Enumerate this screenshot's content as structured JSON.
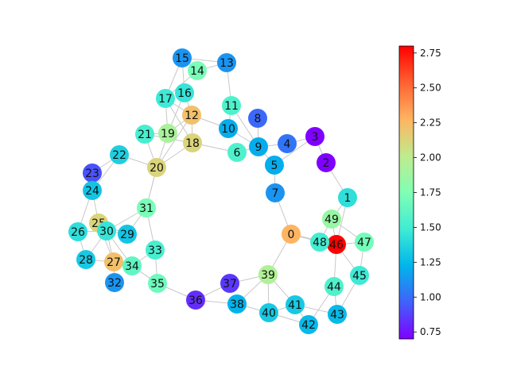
{
  "graph": {
    "edge_color": "#c8c8c8",
    "colormap": "rainbow",
    "nodes": [
      {
        "id": "0",
        "value": 2.27
      },
      {
        "id": "1",
        "value": 1.42
      },
      {
        "id": "2",
        "value": 0.7
      },
      {
        "id": "3",
        "value": 0.7
      },
      {
        "id": "4",
        "value": 1.02
      },
      {
        "id": "5",
        "value": 1.2
      },
      {
        "id": "6",
        "value": 1.55
      },
      {
        "id": "7",
        "value": 1.12
      },
      {
        "id": "8",
        "value": 0.98
      },
      {
        "id": "9",
        "value": 1.2
      },
      {
        "id": "10",
        "value": 1.2
      },
      {
        "id": "11",
        "value": 1.55
      },
      {
        "id": "12",
        "value": 2.22
      },
      {
        "id": "13",
        "value": 1.12
      },
      {
        "id": "14",
        "value": 1.72
      },
      {
        "id": "15",
        "value": 1.12
      },
      {
        "id": "16",
        "value": 1.45
      },
      {
        "id": "17",
        "value": 1.48
      },
      {
        "id": "18",
        "value": 2.12
      },
      {
        "id": "19",
        "value": 1.92
      },
      {
        "id": "20",
        "value": 2.12
      },
      {
        "id": "21",
        "value": 1.52
      },
      {
        "id": "22",
        "value": 1.35
      },
      {
        "id": "23",
        "value": 0.92
      },
      {
        "id": "24",
        "value": 1.3
      },
      {
        "id": "25",
        "value": 2.12
      },
      {
        "id": "26",
        "value": 1.42
      },
      {
        "id": "27",
        "value": 2.22
      },
      {
        "id": "28",
        "value": 1.32
      },
      {
        "id": "29",
        "value": 1.3
      },
      {
        "id": "30",
        "value": 1.45
      },
      {
        "id": "31",
        "value": 1.72
      },
      {
        "id": "32",
        "value": 1.12
      },
      {
        "id": "33",
        "value": 1.52
      },
      {
        "id": "34",
        "value": 1.62
      },
      {
        "id": "35",
        "value": 1.68
      },
      {
        "id": "36",
        "value": 0.82
      },
      {
        "id": "37",
        "value": 0.85
      },
      {
        "id": "38",
        "value": 1.22
      },
      {
        "id": "39",
        "value": 1.95
      },
      {
        "id": "40",
        "value": 1.32
      },
      {
        "id": "41",
        "value": 1.32
      },
      {
        "id": "42",
        "value": 1.25
      },
      {
        "id": "43",
        "value": 1.25
      },
      {
        "id": "44",
        "value": 1.55
      },
      {
        "id": "45",
        "value": 1.48
      },
      {
        "id": "46",
        "value": 2.8
      },
      {
        "id": "47",
        "value": 1.7
      },
      {
        "id": "48",
        "value": 1.5
      },
      {
        "id": "49",
        "value": 1.85
      }
    ],
    "edges": [
      [
        "0",
        "7"
      ],
      [
        "0",
        "48"
      ],
      [
        "0",
        "46"
      ],
      [
        "0",
        "39"
      ],
      [
        "1",
        "2"
      ],
      [
        "1",
        "49"
      ],
      [
        "1",
        "46"
      ],
      [
        "2",
        "3"
      ],
      [
        "3",
        "4"
      ],
      [
        "3",
        "5"
      ],
      [
        "4",
        "9"
      ],
      [
        "5",
        "9"
      ],
      [
        "5",
        "7"
      ],
      [
        "6",
        "9"
      ],
      [
        "6",
        "18"
      ],
      [
        "8",
        "9"
      ],
      [
        "9",
        "10"
      ],
      [
        "10",
        "11"
      ],
      [
        "10",
        "12"
      ],
      [
        "11",
        "13"
      ],
      [
        "12",
        "16"
      ],
      [
        "12",
        "19"
      ],
      [
        "12",
        "18"
      ],
      [
        "12",
        "20"
      ],
      [
        "12",
        "17"
      ],
      [
        "13",
        "14"
      ],
      [
        "13",
        "15"
      ],
      [
        "14",
        "15"
      ],
      [
        "14",
        "17"
      ],
      [
        "15",
        "16"
      ],
      [
        "15",
        "17"
      ],
      [
        "16",
        "19"
      ],
      [
        "17",
        "18"
      ],
      [
        "17",
        "19"
      ],
      [
        "18",
        "20"
      ],
      [
        "18",
        "21"
      ],
      [
        "19",
        "20"
      ],
      [
        "20",
        "22"
      ],
      [
        "20",
        "31"
      ],
      [
        "21",
        "19"
      ],
      [
        "22",
        "23"
      ],
      [
        "22",
        "24"
      ],
      [
        "23",
        "24"
      ],
      [
        "24",
        "25"
      ],
      [
        "24",
        "26"
      ],
      [
        "25",
        "30"
      ],
      [
        "25",
        "27"
      ],
      [
        "25",
        "29"
      ],
      [
        "26",
        "28"
      ],
      [
        "26",
        "30"
      ],
      [
        "27",
        "28"
      ],
      [
        "27",
        "30"
      ],
      [
        "27",
        "32"
      ],
      [
        "27",
        "34"
      ],
      [
        "28",
        "30"
      ],
      [
        "29",
        "30"
      ],
      [
        "29",
        "31"
      ],
      [
        "30",
        "31"
      ],
      [
        "30",
        "34"
      ],
      [
        "31",
        "33"
      ],
      [
        "31",
        "20"
      ],
      [
        "33",
        "34"
      ],
      [
        "33",
        "35"
      ],
      [
        "34",
        "35"
      ],
      [
        "35",
        "36"
      ],
      [
        "36",
        "37"
      ],
      [
        "36",
        "38"
      ],
      [
        "37",
        "39"
      ],
      [
        "38",
        "39"
      ],
      [
        "38",
        "40"
      ],
      [
        "39",
        "40"
      ],
      [
        "39",
        "41"
      ],
      [
        "40",
        "41"
      ],
      [
        "40",
        "42"
      ],
      [
        "41",
        "42"
      ],
      [
        "41",
        "43"
      ],
      [
        "42",
        "44"
      ],
      [
        "43",
        "44"
      ],
      [
        "43",
        "45"
      ],
      [
        "44",
        "46"
      ],
      [
        "45",
        "47"
      ],
      [
        "45",
        "46"
      ],
      [
        "46",
        "47"
      ],
      [
        "46",
        "48"
      ],
      [
        "46",
        "49"
      ],
      [
        "48",
        "49"
      ],
      [
        "47",
        "49"
      ],
      [
        "35",
        "34"
      ],
      [
        "21",
        "20"
      ],
      [
        "11",
        "9"
      ]
    ]
  },
  "colorbar": {
    "min": 0.7,
    "max": 2.8,
    "ticks": [
      "0.75",
      "1.00",
      "1.25",
      "1.50",
      "1.75",
      "2.00",
      "2.25",
      "2.50",
      "2.75"
    ]
  }
}
